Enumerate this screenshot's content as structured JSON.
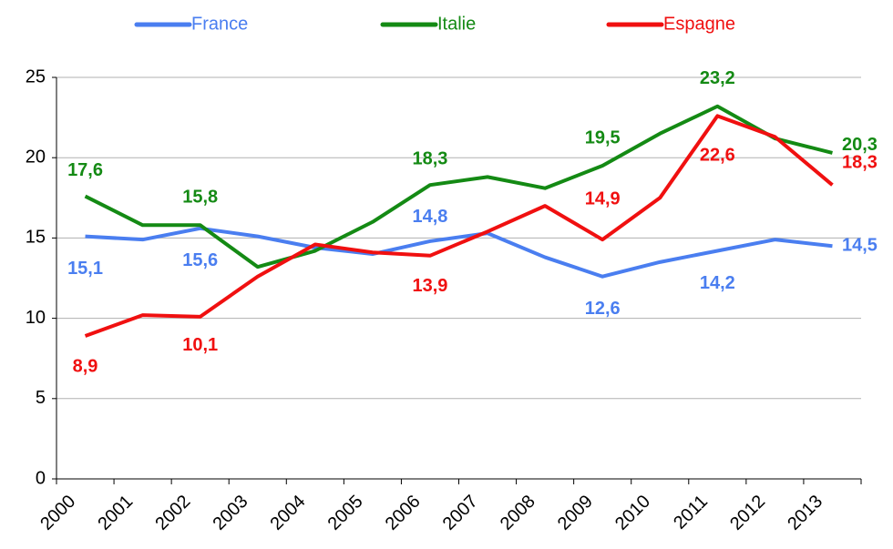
{
  "chart_data": {
    "type": "line",
    "categories": [
      "2000",
      "2001",
      "2002",
      "2003",
      "2004",
      "2005",
      "2006",
      "2007",
      "2008",
      "2009",
      "2010",
      "2011",
      "2012",
      "2013"
    ],
    "series": [
      {
        "name": "France",
        "color": "#4a7ef0",
        "values": [
          15.1,
          14.9,
          15.6,
          15.1,
          14.4,
          14.0,
          14.8,
          15.3,
          13.8,
          12.6,
          13.5,
          14.2,
          14.9,
          14.5
        ],
        "value_labels": [
          "15,1",
          null,
          "15,6",
          null,
          null,
          null,
          "14,8",
          null,
          null,
          "12,6",
          null,
          "14,2",
          null,
          "14,5"
        ]
      },
      {
        "name": "Italie",
        "color": "#148a14",
        "values": [
          17.6,
          15.8,
          15.8,
          13.2,
          14.2,
          16.0,
          18.3,
          18.8,
          18.1,
          19.5,
          21.5,
          23.2,
          21.2,
          20.3
        ],
        "value_labels": [
          "17,6",
          null,
          "15,8",
          null,
          null,
          null,
          "18,3",
          null,
          null,
          "19,5",
          null,
          "23,2",
          null,
          "20,3"
        ]
      },
      {
        "name": "Espagne",
        "color": "#f01010",
        "values": [
          8.9,
          10.2,
          10.1,
          12.6,
          14.6,
          14.1,
          13.9,
          15.4,
          17.0,
          14.9,
          17.5,
          22.6,
          21.3,
          18.3
        ],
        "value_labels": [
          "8,9",
          null,
          "10,1",
          null,
          null,
          null,
          "13,9",
          null,
          null,
          "14,9",
          null,
          "22,6",
          null,
          "18,3"
        ]
      }
    ],
    "ylim": [
      0,
      25
    ],
    "yticks": [
      0,
      5,
      10,
      15,
      20,
      25
    ],
    "grid": true
  }
}
